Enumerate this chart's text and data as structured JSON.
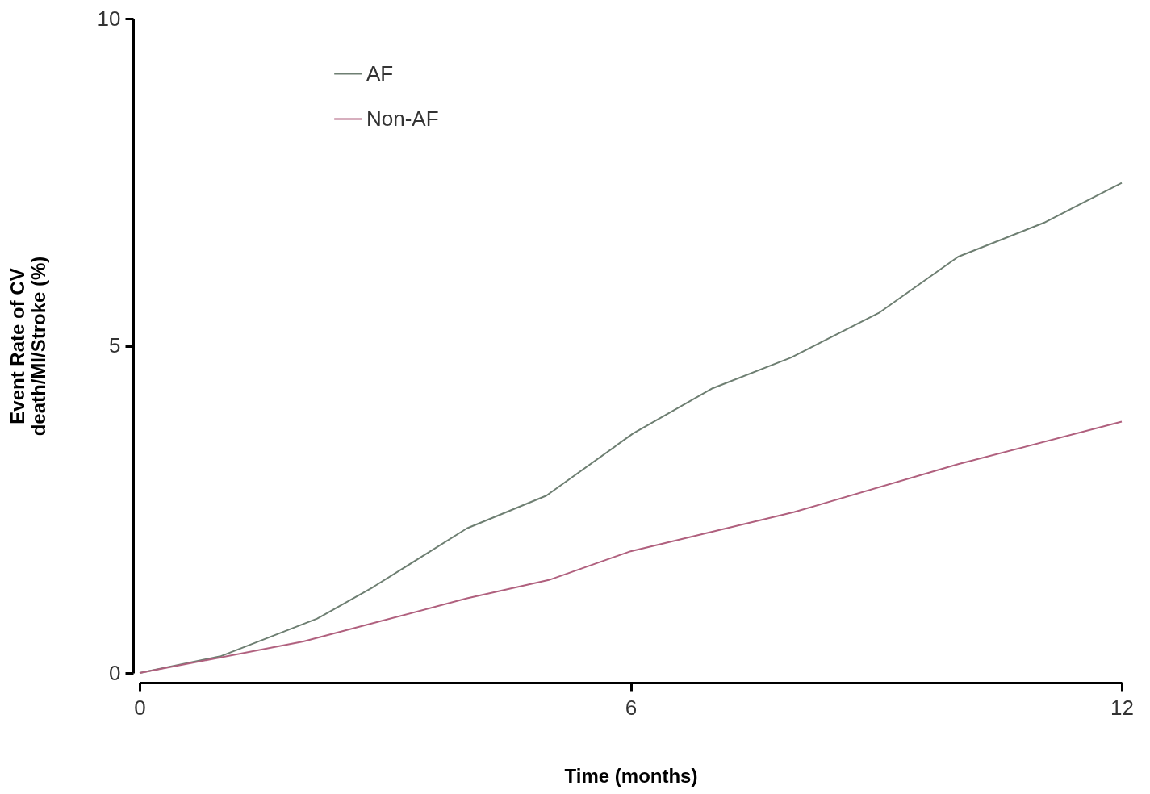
{
  "chart_data": {
    "type": "line",
    "xlabel": "Time (months)",
    "ylabel": "Event Rate of CV death/MI/Stroke (%)",
    "xlim": [
      0,
      12
    ],
    "xticks": [
      0,
      6,
      12
    ],
    "ylim": [
      0,
      10
    ],
    "yticks": [
      0,
      5,
      10
    ],
    "grid": false,
    "legend": "top left",
    "marker": "none",
    "line_style": "solid",
    "series": [
      {
        "name": "AF",
        "color": "#6e7f72",
        "x": [
          0,
          1,
          2.17,
          2.85,
          4,
          4.97,
          6.03,
          7,
          7.96,
          9.03,
          10,
          11.05,
          12
        ],
        "values": [
          0,
          0.26,
          0.83,
          1.31,
          2.21,
          2.71,
          3.66,
          4.35,
          4.82,
          5.5,
          6.36,
          6.88,
          7.49
        ]
      },
      {
        "name": "Non-AF",
        "color": "#b0607e",
        "x": [
          0,
          2,
          4,
          5,
          6,
          8,
          10,
          12
        ],
        "values": [
          0,
          0.48,
          1.14,
          1.42,
          1.86,
          2.46,
          3.19,
          3.84
        ]
      }
    ]
  }
}
